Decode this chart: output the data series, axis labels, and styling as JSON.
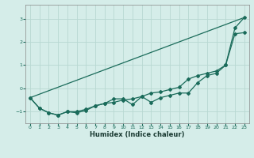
{
  "xlabel": "Humidex (Indice chaleur)",
  "background_color": "#d5ede9",
  "grid_color": "#b8d8d2",
  "line_color": "#1a6b5a",
  "xlim": [
    -0.5,
    23.5
  ],
  "ylim": [
    -1.5,
    3.6
  ],
  "x_ticks": [
    0,
    1,
    2,
    3,
    4,
    5,
    6,
    7,
    8,
    9,
    10,
    11,
    12,
    13,
    14,
    15,
    16,
    17,
    18,
    19,
    20,
    21,
    22,
    23
  ],
  "y_ticks": [
    -1,
    0,
    1,
    2,
    3
  ],
  "curve1_x": [
    0,
    1,
    2,
    3,
    4,
    5,
    6,
    7,
    8,
    9,
    10,
    11,
    12,
    13,
    14,
    15,
    16,
    17,
    18,
    19,
    20,
    21,
    22,
    23
  ],
  "curve1_y": [
    -0.4,
    -0.85,
    -1.05,
    -1.15,
    -1.0,
    -1.0,
    -0.9,
    -0.75,
    -0.65,
    -0.6,
    -0.5,
    -0.45,
    -0.35,
    -0.2,
    -0.15,
    -0.05,
    0.05,
    0.4,
    0.55,
    0.65,
    0.75,
    1.0,
    2.6,
    3.05
  ],
  "curve2_x": [
    0,
    1,
    2,
    3,
    4,
    5,
    6,
    7,
    8,
    9,
    10,
    11,
    12,
    13,
    14,
    15,
    16,
    17,
    18,
    19,
    20,
    21,
    22,
    23
  ],
  "curve2_y": [
    -0.4,
    -0.85,
    -1.05,
    -1.15,
    -1.0,
    -1.05,
    -0.95,
    -0.75,
    -0.65,
    -0.45,
    -0.45,
    -0.7,
    -0.35,
    -0.6,
    -0.4,
    -0.3,
    -0.2,
    -0.2,
    0.25,
    0.55,
    0.65,
    1.0,
    2.35,
    2.4
  ],
  "straight_line_x": [
    0,
    23
  ],
  "straight_line_y": [
    -0.4,
    3.05
  ]
}
